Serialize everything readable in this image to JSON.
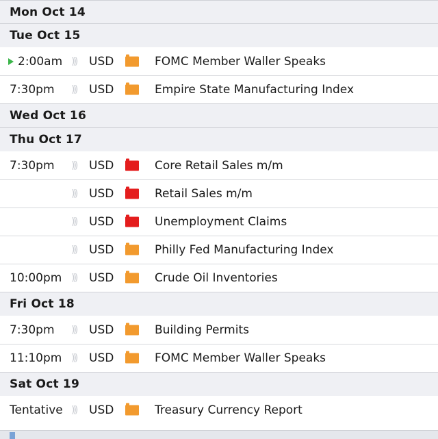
{
  "days": [
    {
      "label": "Mon Oct 14",
      "events": []
    },
    {
      "label": "Tue Oct 15",
      "events": [
        {
          "time": "2:00am",
          "current": true,
          "currency": "USD",
          "impact": "medium",
          "name": "FOMC Member Waller Speaks"
        },
        {
          "time": "7:30pm",
          "currency": "USD",
          "impact": "medium",
          "name": "Empire State Manufacturing Index"
        }
      ]
    },
    {
      "label": "Wed Oct 16",
      "events": []
    },
    {
      "label": "Thu Oct 17",
      "events": [
        {
          "time": "7:30pm",
          "currency": "USD",
          "impact": "high",
          "name": "Core Retail Sales m/m"
        },
        {
          "time": "",
          "currency": "USD",
          "impact": "high",
          "name": "Retail Sales m/m"
        },
        {
          "time": "",
          "currency": "USD",
          "impact": "high",
          "name": "Unemployment Claims"
        },
        {
          "time": "",
          "currency": "USD",
          "impact": "medium",
          "name": "Philly Fed Manufacturing Index"
        },
        {
          "time": "10:00pm",
          "currency": "USD",
          "impact": "medium",
          "name": "Crude Oil Inventories"
        }
      ]
    },
    {
      "label": "Fri Oct 18",
      "events": [
        {
          "time": "7:30pm",
          "currency": "USD",
          "impact": "medium",
          "name": "Building Permits"
        },
        {
          "time": "11:10pm",
          "currency": "USD",
          "impact": "medium",
          "name": "FOMC Member Waller Speaks"
        }
      ]
    },
    {
      "label": "Sat Oct 19",
      "events": [
        {
          "time": "Tentative",
          "currency": "USD",
          "impact": "medium",
          "name": "Treasury Currency Report"
        }
      ]
    }
  ],
  "icons": {
    "sound": "sound-icon",
    "impact": "impact-folder-icon",
    "current": "play-icon"
  },
  "colors": {
    "high": "#e41d1d",
    "medium": "#f29a2e",
    "current": "#3bb54a",
    "day_bg": "#eff0f4"
  }
}
